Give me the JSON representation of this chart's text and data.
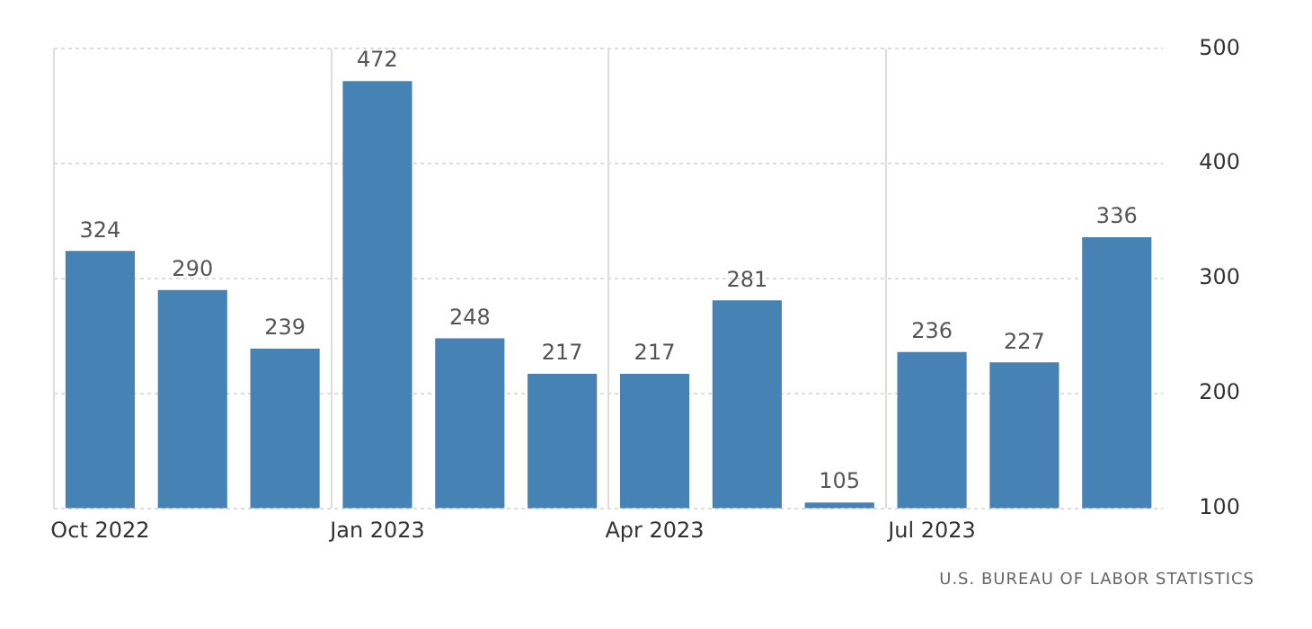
{
  "chart_data": {
    "type": "bar",
    "categories": [
      "Oct 2022",
      null,
      null,
      "Jan 2023",
      null,
      null,
      "Apr 2023",
      null,
      null,
      "Jul 2023",
      null,
      null
    ],
    "values": [
      324,
      290,
      239,
      472,
      248,
      217,
      217,
      281,
      105,
      236,
      227,
      336
    ],
    "color": "#4682b4",
    "ylim": [
      100,
      500
    ],
    "yticks": [
      100,
      200,
      300,
      400,
      500
    ],
    "grid": true,
    "data_labels": true,
    "annotations": [
      "U.S. BUREAU OF LABOR STATISTICS"
    ]
  }
}
